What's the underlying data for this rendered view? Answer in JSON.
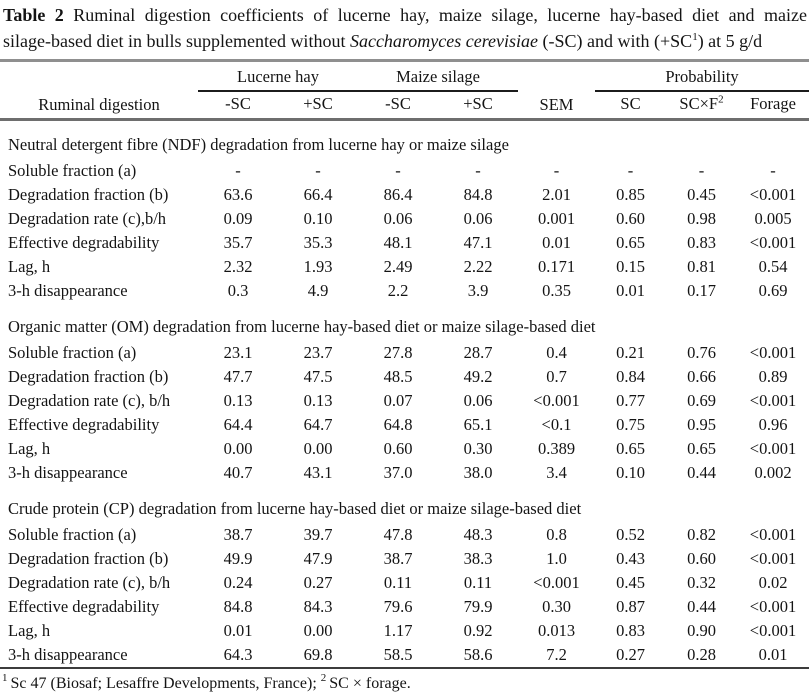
{
  "page": {
    "background": "#ffffff",
    "text_color": "#141414",
    "top_rule_color": "#8f8f8f",
    "header_rule_color": "#6e6e6e",
    "bottom_rule_color": "#3c3c3c"
  },
  "caption": {
    "line1_bold": "Table 2",
    "line1_rest": " Ruminal digestion coefficients of lucerne hay, maize silage, lucerne hay-based diet and maize",
    "line2_start": "silage-based diet in bulls supplemented without ",
    "line2_italic": "Saccharomyces cerevisiae",
    "line2_mid": " (-SC) and with (+SC",
    "line2_sup": "1",
    "line2_end": ") at 5 g/d"
  },
  "table": {
    "stub_header": "Ruminal digestion",
    "groups": {
      "lucerne": "Lucerne hay",
      "maize": "Maize silage",
      "sem": "SEM",
      "probability": "Probability"
    },
    "sub_headers": {
      "lucerne_minus": "-SC",
      "lucerne_plus": "+SC",
      "maize_minus": "-SC",
      "maize_plus": "+SC",
      "prob_sc": "SC",
      "prob_scxf_base": "SC×F",
      "prob_scxf_sup": "2",
      "prob_forage": "Forage"
    },
    "sections": [
      {
        "title": "Neutral detergent fibre (NDF) degradation from lucerne hay or maize silage",
        "rows": [
          {
            "label": "Soluble fraction (a)",
            "values": [
              "-",
              "-",
              "-",
              "-",
              "-",
              "-",
              "-",
              "-"
            ]
          },
          {
            "label": "Degradation fraction (b)",
            "values": [
              "63.6",
              "66.4",
              "86.4",
              "84.8",
              "2.01",
              "0.85",
              "0.45",
              "<0.001"
            ]
          },
          {
            "label": "Degradation rate (c),b/h",
            "values": [
              "0.09",
              "0.10",
              "0.06",
              "0.06",
              "0.001",
              "0.60",
              "0.98",
              "0.005"
            ]
          },
          {
            "label": "Effective degradability",
            "values": [
              "35.7",
              "35.3",
              "48.1",
              "47.1",
              "0.01",
              "0.65",
              "0.83",
              "<0.001"
            ]
          },
          {
            "label": "Lag, h",
            "values": [
              "2.32",
              "1.93",
              "2.49",
              "2.22",
              "0.171",
              "0.15",
              "0.81",
              "0.54"
            ]
          },
          {
            "label": "3-h disappearance",
            "values": [
              "0.3",
              "4.9",
              "2.2",
              "3.9",
              "0.35",
              "0.01",
              "0.17",
              "0.69"
            ]
          }
        ]
      },
      {
        "title": "Organic matter (OM) degradation from lucerne hay-based diet or maize silage-based diet",
        "rows": [
          {
            "label": "Soluble fraction (a)",
            "values": [
              "23.1",
              "23.7",
              "27.8",
              "28.7",
              "0.4",
              "0.21",
              "0.76",
              "<0.001"
            ]
          },
          {
            "label": "Degradation fraction (b)",
            "values": [
              "47.7",
              "47.5",
              "48.5",
              "49.2",
              "0.7",
              "0.84",
              "0.66",
              "0.89"
            ]
          },
          {
            "label": "Degradation rate (c), b/h",
            "values": [
              "0.13",
              "0.13",
              "0.07",
              "0.06",
              "<0.001",
              "0.77",
              "0.69",
              "<0.001"
            ]
          },
          {
            "label": "Effective degradability",
            "values": [
              "64.4",
              "64.7",
              "64.8",
              "65.1",
              "<0.1",
              "0.75",
              "0.95",
              "0.96"
            ]
          },
          {
            "label": "Lag, h",
            "values": [
              "0.00",
              "0.00",
              "0.60",
              "0.30",
              "0.389",
              "0.65",
              "0.65",
              "<0.001"
            ]
          },
          {
            "label": "3-h disappearance",
            "values": [
              "40.7",
              "43.1",
              "37.0",
              "38.0",
              "3.4",
              "0.10",
              "0.44",
              "0.002"
            ]
          }
        ]
      },
      {
        "title": "Crude protein (CP) degradation from lucerne hay-based diet or maize silage-based diet",
        "rows": [
          {
            "label": "Soluble fraction (a)",
            "values": [
              "38.7",
              "39.7",
              "47.8",
              "48.3",
              "0.8",
              "0.52",
              "0.82",
              "<0.001"
            ]
          },
          {
            "label": "Degradation fraction (b)",
            "values": [
              "49.9",
              "47.9",
              "38.7",
              "38.3",
              "1.0",
              "0.43",
              "0.60",
              "<0.001"
            ]
          },
          {
            "label": "Degradation rate (c), b/h",
            "values": [
              "0.24",
              "0.27",
              "0.11",
              "0.11",
              "<0.001",
              "0.45",
              "0.32",
              "0.02"
            ]
          },
          {
            "label": "Effective degradability",
            "values": [
              "84.8",
              "84.3",
              "79.6",
              "79.9",
              "0.30",
              "0.87",
              "0.44",
              "<0.001"
            ]
          },
          {
            "label": "Lag, h",
            "values": [
              "0.01",
              "0.00",
              "1.17",
              "0.92",
              "0.013",
              "0.83",
              "0.90",
              "<0.001"
            ]
          },
          {
            "label": "3-h disappearance",
            "values": [
              "64.3",
              "69.8",
              "58.5",
              "58.6",
              "7.2",
              "0.27",
              "0.28",
              "0.01"
            ]
          }
        ]
      }
    ]
  },
  "footnote": {
    "sup1": "1",
    "text1": "Sc 47 (Biosaf; Lesaffre Developments, France); ",
    "sup2": "2",
    "text2": "SC × forage."
  }
}
